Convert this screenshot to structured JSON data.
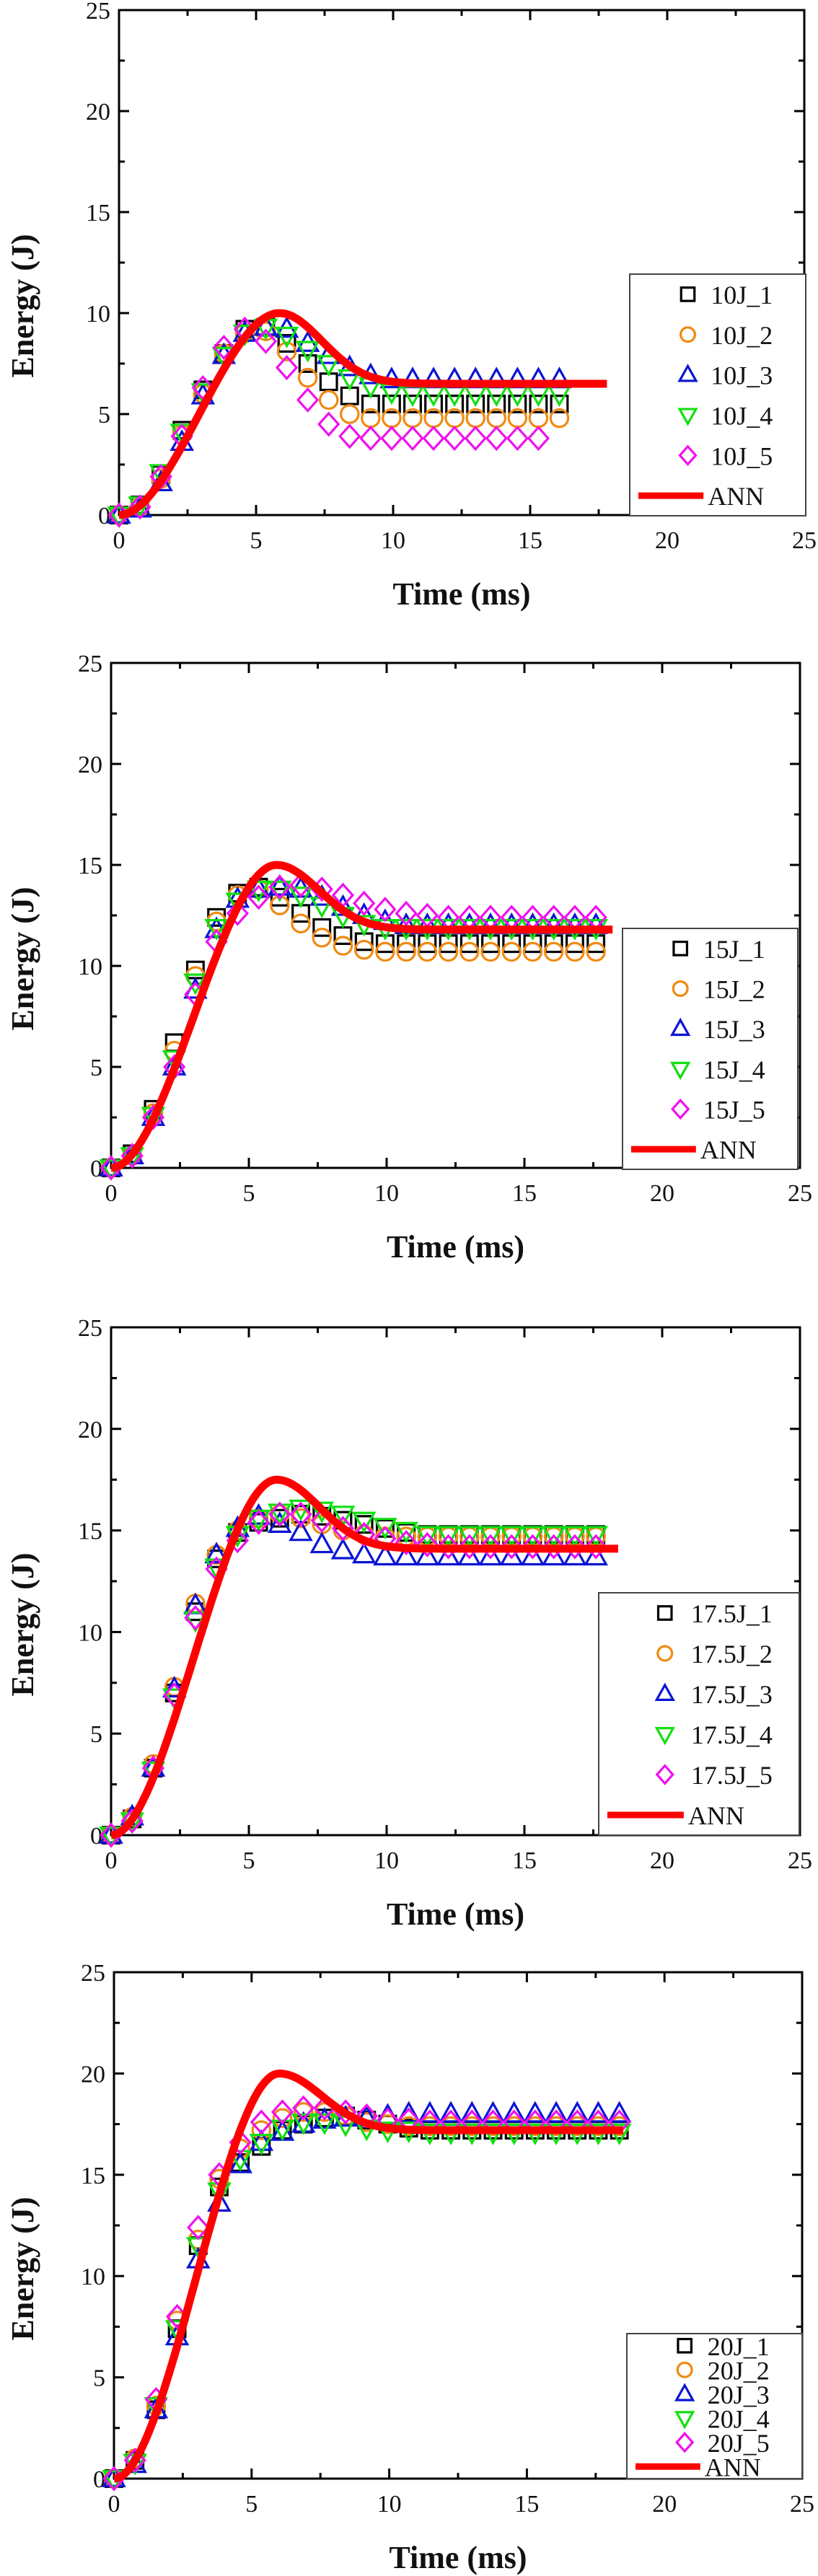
{
  "figure_title": "",
  "chart_data": [
    {
      "type": "scatter",
      "title": "",
      "xlabel": "Time (ms)",
      "ylabel": "Energy (J)",
      "xlim": [
        0,
        25
      ],
      "ylim": [
        0,
        25
      ],
      "xticks": [
        "0",
        "5",
        "10",
        "15",
        "20",
        "25"
      ],
      "yticks": [
        "0",
        "5",
        "10",
        "15",
        "20",
        "25"
      ],
      "legend_position": "bottom-right",
      "time_step_ms": 0.765,
      "series": [
        {
          "name": "10J_1",
          "marker": "square",
          "color": "#000000",
          "values": [
            0,
            0.5,
            2.0,
            4.2,
            6.2,
            8.0,
            9.2,
            9.3,
            8.5,
            7.5,
            6.6,
            5.9,
            5.5,
            5.5,
            5.5,
            5.5,
            5.5,
            5.5,
            5.5,
            5.5,
            5.5,
            5.5
          ]
        },
        {
          "name": "10J_2",
          "marker": "circle",
          "color": "#f08a12",
          "values": [
            0,
            0.4,
            1.8,
            4.0,
            6.0,
            8.0,
            9.0,
            9.1,
            8.1,
            6.8,
            5.7,
            5.0,
            4.8,
            4.8,
            4.8,
            4.8,
            4.8,
            4.8,
            4.8,
            4.8,
            4.8,
            4.8
          ]
        },
        {
          "name": "10J_3",
          "marker": "triangle-up",
          "color": "#0a14d6",
          "values": [
            0,
            0.3,
            1.6,
            3.6,
            5.9,
            7.9,
            9.0,
            9.3,
            9.2,
            8.5,
            7.9,
            7.3,
            6.9,
            6.7,
            6.7,
            6.7,
            6.7,
            6.7,
            6.7,
            6.7,
            6.7,
            6.7
          ]
        },
        {
          "name": "10J_4",
          "marker": "triangle-down",
          "color": "#10e010",
          "values": [
            0,
            0.5,
            2.1,
            4.1,
            6.1,
            7.9,
            9.0,
            9.3,
            8.9,
            8.2,
            7.5,
            6.8,
            6.4,
            6.1,
            6.0,
            6.0,
            6.0,
            6.0,
            6.0,
            6.0,
            6.0,
            6.0
          ]
        },
        {
          "name": "10J_5",
          "marker": "diamond",
          "color": "#f010f0",
          "values": [
            0,
            0.4,
            1.9,
            3.9,
            6.3,
            8.3,
            9.2,
            8.6,
            7.3,
            5.7,
            4.5,
            3.9,
            3.8,
            3.8,
            3.8,
            3.8,
            3.8,
            3.8,
            3.8,
            3.8,
            3.8
          ]
        }
      ],
      "ann": {
        "name": "ANN",
        "color": "#ff0000",
        "peak": 10.0,
        "peak_time": 5.85,
        "plateau": 6.5,
        "end_time": 17.8
      }
    },
    {
      "type": "scatter",
      "title": "",
      "xlabel": "Time (ms)",
      "ylabel": "Energy (J)",
      "xlim": [
        0,
        25
      ],
      "ylim": [
        0,
        25
      ],
      "xticks": [
        "0",
        "5",
        "10",
        "15",
        "20",
        "25"
      ],
      "yticks": [
        "0",
        "5",
        "10",
        "15",
        "20",
        "25"
      ],
      "legend_position": "bottom-right",
      "time_step_ms": 0.765,
      "series": [
        {
          "name": "15J_1",
          "marker": "square",
          "color": "#000000",
          "values": [
            0,
            0.7,
            2.9,
            6.2,
            9.8,
            12.4,
            13.6,
            13.9,
            13.4,
            12.6,
            11.9,
            11.5,
            11.2,
            11.1,
            11.1,
            11.1,
            11.1,
            11.1,
            11.1,
            11.1,
            11.1,
            11.1,
            11.1,
            11.1
          ]
        },
        {
          "name": "15J_2",
          "marker": "circle",
          "color": "#f08a12",
          "values": [
            0,
            0.6,
            2.7,
            5.8,
            9.5,
            12.2,
            13.5,
            13.8,
            13.0,
            12.1,
            11.4,
            11.0,
            10.8,
            10.7,
            10.7,
            10.7,
            10.7,
            10.7,
            10.7,
            10.7,
            10.7,
            10.7,
            10.7,
            10.7
          ]
        },
        {
          "name": "15J_3",
          "marker": "triangle-up",
          "color": "#0a14d6",
          "values": [
            0,
            0.6,
            2.5,
            5.0,
            8.8,
            11.8,
            13.3,
            13.8,
            13.9,
            13.8,
            13.4,
            12.9,
            12.5,
            12.2,
            12.0,
            12.0,
            12.0,
            12.0,
            12.0,
            12.0,
            12.0,
            12.0,
            12.0,
            12.0
          ]
        },
        {
          "name": "15J_4",
          "marker": "triangle-down",
          "color": "#10e010",
          "values": [
            0,
            0.6,
            2.6,
            5.4,
            9.2,
            11.9,
            13.2,
            13.8,
            13.8,
            13.5,
            13.0,
            12.5,
            12.1,
            11.9,
            11.9,
            11.9,
            11.9,
            11.9,
            11.9,
            11.9,
            11.9,
            11.9,
            11.9,
            11.9
          ]
        },
        {
          "name": "15J_5",
          "marker": "diamond",
          "color": "#f010f0",
          "values": [
            0,
            0.6,
            2.5,
            5.0,
            8.6,
            11.2,
            12.6,
            13.4,
            13.9,
            14.0,
            13.8,
            13.5,
            13.1,
            12.8,
            12.6,
            12.5,
            12.4,
            12.4,
            12.4,
            12.4,
            12.4,
            12.4,
            12.4,
            12.4
          ]
        }
      ],
      "ann": {
        "name": "ANN",
        "color": "#ff0000",
        "peak": 15.0,
        "peak_time": 6.0,
        "plateau": 11.8,
        "end_time": 18.2
      }
    },
    {
      "type": "scatter",
      "title": "",
      "xlabel": "Time (ms)",
      "ylabel": "Energy (J)",
      "xlim": [
        0,
        25
      ],
      "ylim": [
        0,
        25
      ],
      "xticks": [
        "0",
        "5",
        "10",
        "15",
        "20",
        "25"
      ],
      "yticks": [
        "0",
        "5",
        "10",
        "15",
        "20",
        "25"
      ],
      "legend_position": "bottom-right",
      "time_step_ms": 0.765,
      "series": [
        {
          "name": "17.5J_1",
          "marker": "square",
          "color": "#000000",
          "values": [
            0,
            0.8,
            3.3,
            7.0,
            11.0,
            13.6,
            14.9,
            15.4,
            15.6,
            15.8,
            15.7,
            15.5,
            15.3,
            15.1,
            14.9,
            14.8,
            14.8,
            14.8,
            14.8,
            14.8,
            14.8,
            14.8,
            14.8,
            14.8
          ]
        },
        {
          "name": "17.5J_2",
          "marker": "circle",
          "color": "#f08a12",
          "values": [
            0,
            0.9,
            3.5,
            7.3,
            11.4,
            13.8,
            15.0,
            15.6,
            15.8,
            15.6,
            15.3,
            15.0,
            14.8,
            14.7,
            14.7,
            14.7,
            14.7,
            14.7,
            14.7,
            14.7,
            14.7,
            14.7,
            14.7,
            14.7
          ]
        },
        {
          "name": "17.5J_3",
          "marker": "triangle-up",
          "color": "#0a14d6",
          "values": [
            0,
            0.9,
            3.3,
            7.2,
            11.3,
            13.8,
            15.1,
            15.7,
            15.3,
            14.9,
            14.3,
            14.0,
            13.8,
            13.7,
            13.7,
            13.7,
            13.7,
            13.7,
            13.7,
            13.7,
            13.7,
            13.7,
            13.7,
            13.7
          ]
        },
        {
          "name": "17.5J_4",
          "marker": "triangle-down",
          "color": "#10e010",
          "values": [
            0,
            0.7,
            3.2,
            6.8,
            10.6,
            13.2,
            14.8,
            15.6,
            15.9,
            16.1,
            16.0,
            15.8,
            15.5,
            15.2,
            15.0,
            14.8,
            14.8,
            14.8,
            14.8,
            14.8,
            14.8,
            14.8,
            14.8,
            14.8
          ]
        },
        {
          "name": "17.5J_5",
          "marker": "diamond",
          "color": "#f010f0",
          "values": [
            0,
            0.7,
            3.3,
            6.9,
            10.7,
            13.1,
            14.5,
            15.4,
            15.8,
            15.8,
            15.5,
            15.1,
            14.8,
            14.6,
            14.4,
            14.3,
            14.2,
            14.2,
            14.2,
            14.2,
            14.2,
            14.2,
            14.2,
            14.2
          ]
        }
      ],
      "ann": {
        "name": "ANN",
        "color": "#ff0000",
        "peak": 17.5,
        "peak_time": 6.0,
        "plateau": 14.1,
        "end_time": 18.4
      }
    },
    {
      "type": "scatter",
      "title": "",
      "xlabel": "Time (ms)",
      "ylabel": "Energy (J)",
      "xlim": [
        0,
        25
      ],
      "ylim": [
        0,
        25
      ],
      "xticks": [
        "0",
        "5",
        "10",
        "15",
        "20",
        "25"
      ],
      "yticks": [
        "0",
        "5",
        "10",
        "15",
        "20",
        "25"
      ],
      "legend_position": "bottom-right",
      "time_step_ms": 0.765,
      "series": [
        {
          "name": "20J_1",
          "marker": "square",
          "color": "#000000",
          "values": [
            0,
            0.9,
            3.4,
            7.4,
            11.5,
            14.4,
            15.6,
            16.4,
            17.2,
            17.5,
            17.8,
            17.9,
            17.7,
            17.5,
            17.3,
            17.2,
            17.2,
            17.2,
            17.2,
            17.2,
            17.2,
            17.2,
            17.2,
            17.2,
            17.2
          ]
        },
        {
          "name": "20J_2",
          "marker": "circle",
          "color": "#f08a12",
          "values": [
            0,
            1.0,
            3.6,
            7.8,
            11.8,
            14.8,
            16.3,
            17.2,
            17.8,
            18.1,
            18.1,
            17.9,
            17.6,
            17.5,
            17.4,
            17.4,
            17.4,
            17.4,
            17.4,
            17.4,
            17.4,
            17.4,
            17.4,
            17.4,
            17.4
          ]
        },
        {
          "name": "20J_3",
          "marker": "triangle-up",
          "color": "#0a14d6",
          "values": [
            0,
            0.7,
            3.4,
            7.0,
            10.8,
            13.6,
            15.5,
            16.6,
            17.1,
            17.5,
            17.7,
            17.8,
            17.8,
            17.9,
            18.0,
            18.0,
            18.0,
            18.0,
            18.0,
            18.0,
            18.0,
            18.0,
            18.0,
            18.0,
            18.0
          ]
        },
        {
          "name": "20J_4",
          "marker": "triangle-down",
          "color": "#10e010",
          "values": [
            0,
            0.8,
            3.6,
            7.4,
            11.5,
            14.2,
            15.8,
            16.6,
            17.3,
            17.6,
            17.6,
            17.5,
            17.3,
            17.2,
            17.2,
            17.1,
            17.1,
            17.1,
            17.1,
            17.1,
            17.1,
            17.1,
            17.1,
            17.1,
            17.1
          ]
        },
        {
          "name": "20J_5",
          "marker": "diamond",
          "color": "#f010f0",
          "values": [
            0,
            0.9,
            3.9,
            8.0,
            12.4,
            15.0,
            16.6,
            17.6,
            18.1,
            18.3,
            18.3,
            18.1,
            17.9,
            17.7,
            17.7,
            17.6,
            17.6,
            17.6,
            17.6,
            17.6,
            17.6,
            17.6,
            17.6,
            17.6,
            17.6
          ]
        }
      ],
      "ann": {
        "name": "ANN",
        "color": "#ff0000",
        "peak": 20.0,
        "peak_time": 6.0,
        "plateau": 17.2,
        "end_time": 18.5
      }
    }
  ]
}
